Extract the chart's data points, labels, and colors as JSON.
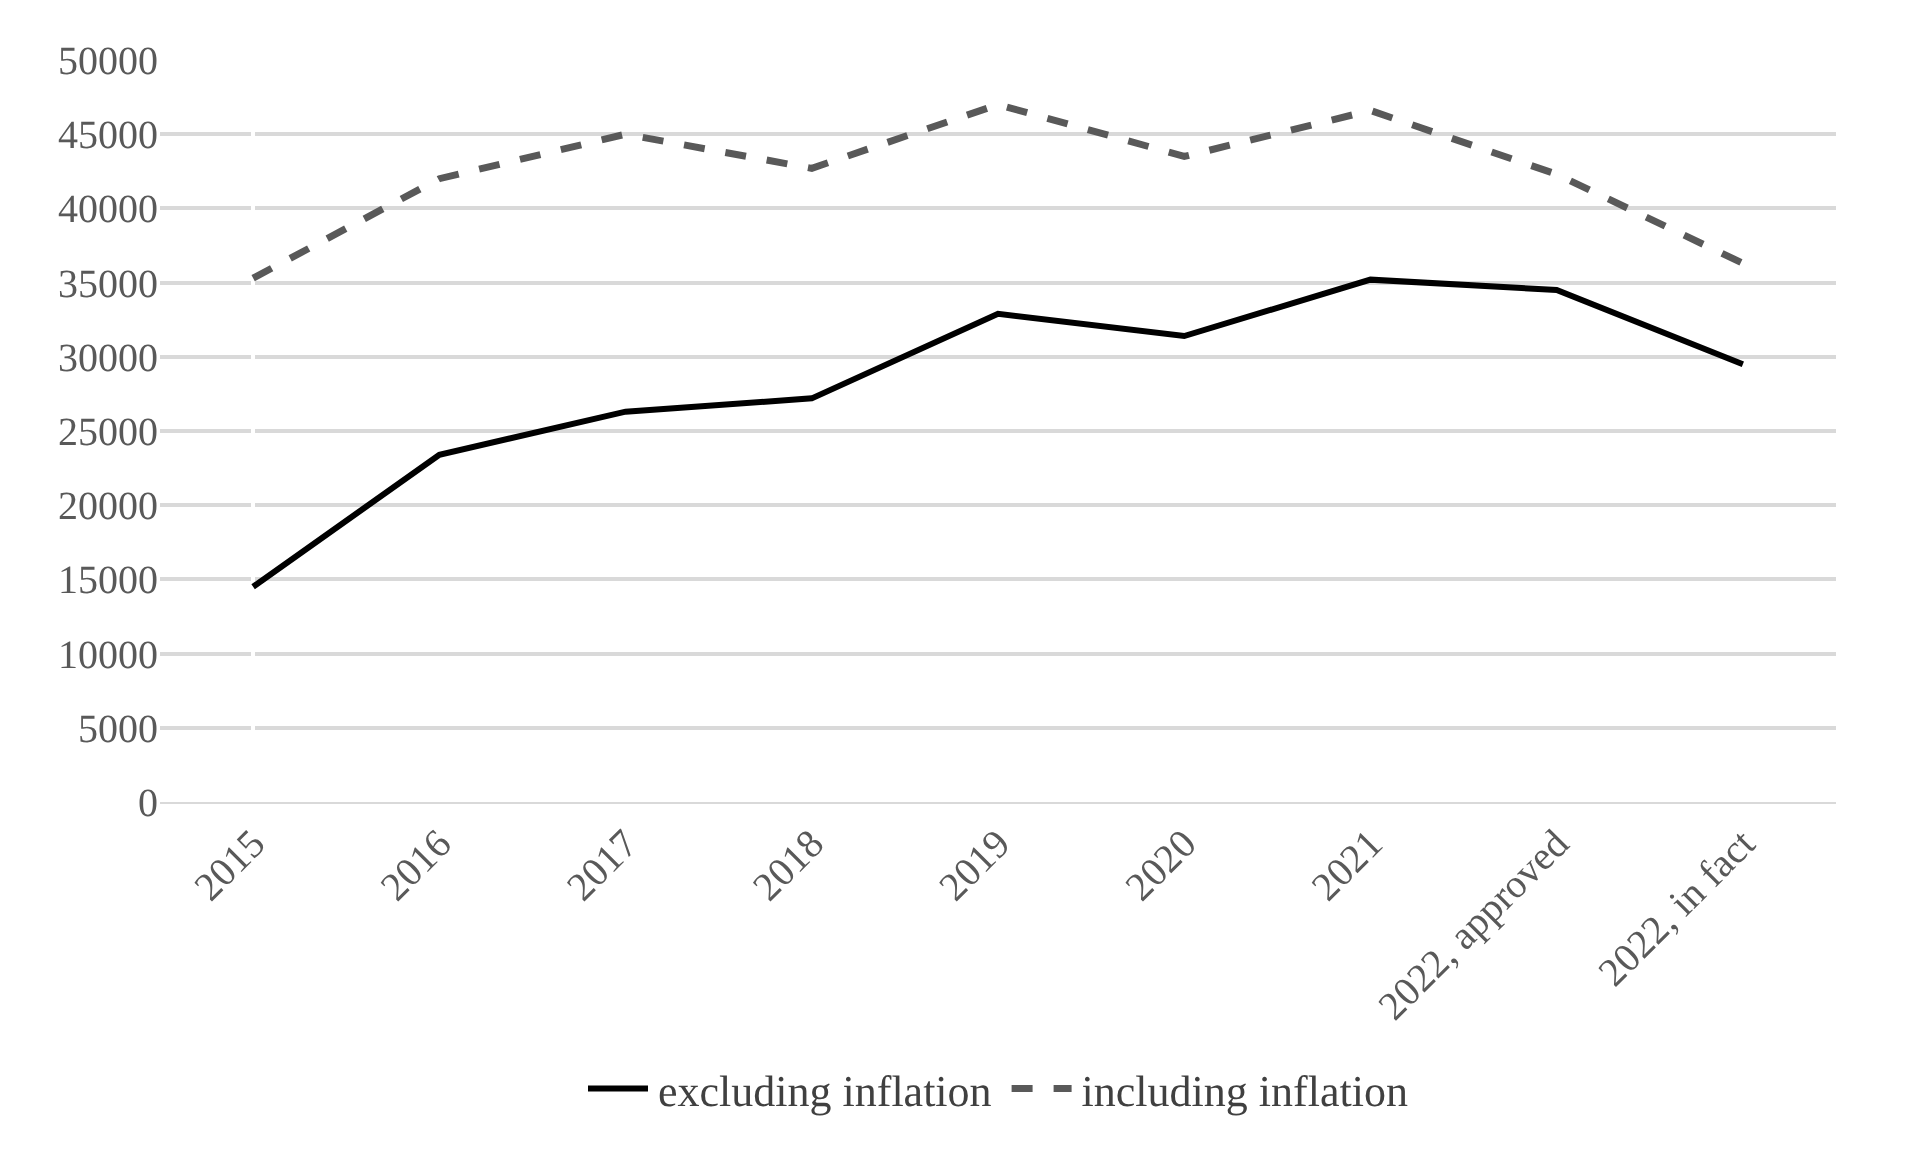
{
  "chart_data": {
    "type": "line",
    "categories": [
      "2015",
      "2016",
      "2017",
      "2018",
      "2019",
      "2020",
      "2021",
      "2022, approved",
      "2022, in fact"
    ],
    "series": [
      {
        "name": "excluding inflation",
        "color": "#000000",
        "line_style": "solid",
        "values": [
          14500,
          23400,
          26300,
          27200,
          32900,
          31400,
          35200,
          34500,
          29500
        ]
      },
      {
        "name": "including inflation",
        "color": "#595959",
        "line_style": "dashed",
        "values": [
          35300,
          42000,
          45000,
          42700,
          47000,
          43500,
          46600,
          42300,
          36300
        ]
      }
    ],
    "ylim": [
      0,
      50000
    ],
    "yticks": [
      0,
      5000,
      10000,
      15000,
      20000,
      25000,
      30000,
      35000,
      40000,
      45000,
      50000
    ],
    "grid": "y",
    "legend": "bottom",
    "marker": "none"
  }
}
